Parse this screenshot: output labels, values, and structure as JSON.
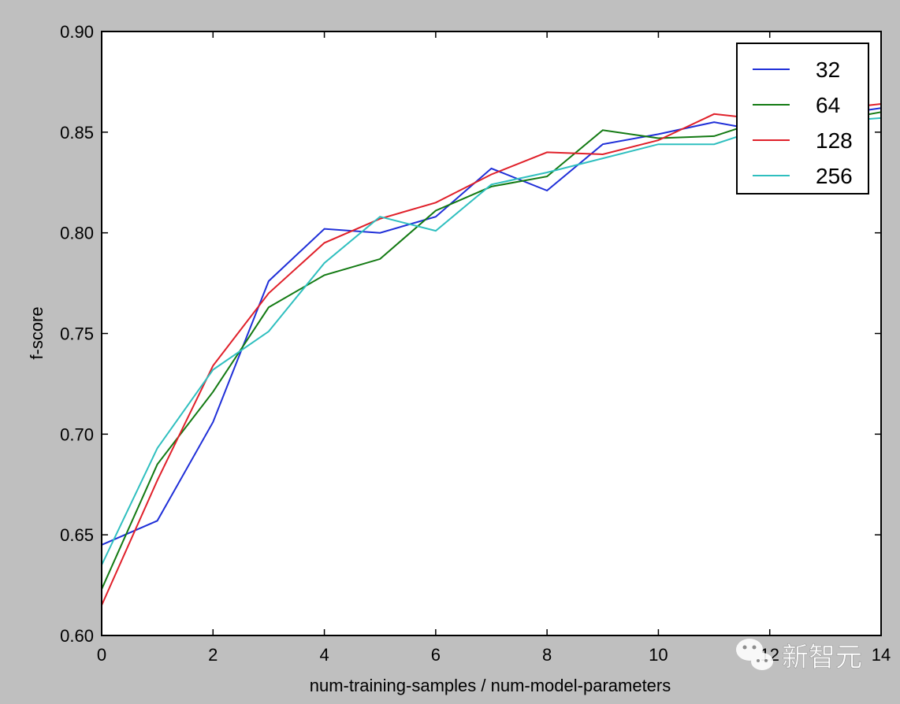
{
  "chart_data": {
    "type": "line",
    "title": "",
    "xlabel": "num-training-samples / num-model-parameters",
    "ylabel": "f-score",
    "xlim": [
      0,
      14
    ],
    "ylim": [
      0.6,
      0.9
    ],
    "x_ticks": [
      0,
      2,
      4,
      6,
      8,
      10,
      12,
      14
    ],
    "y_ticks": [
      0.6,
      0.65,
      0.7,
      0.75,
      0.8,
      0.85,
      0.9
    ],
    "grid": false,
    "legend_position": "top-right",
    "x": [
      0,
      1,
      2,
      3,
      4,
      5,
      6,
      7,
      8,
      9,
      10,
      11,
      12,
      13,
      14
    ],
    "series": [
      {
        "name": "32",
        "color": "#1f2fd8",
        "values": [
          0.645,
          0.657,
          0.706,
          0.776,
          0.802,
          0.8,
          0.808,
          0.832,
          0.821,
          0.844,
          0.849,
          0.855,
          0.85,
          0.858,
          0.862
        ]
      },
      {
        "name": "64",
        "color": "#137a13",
        "values": [
          0.623,
          0.685,
          0.721,
          0.763,
          0.779,
          0.787,
          0.811,
          0.823,
          0.828,
          0.851,
          0.847,
          0.848,
          0.857,
          0.855,
          0.86
        ]
      },
      {
        "name": "128",
        "color": "#e0202a",
        "values": [
          0.615,
          0.677,
          0.734,
          0.77,
          0.795,
          0.807,
          0.815,
          0.829,
          0.84,
          0.839,
          0.846,
          0.859,
          0.856,
          0.861,
          0.864
        ]
      },
      {
        "name": "256",
        "color": "#2fbfbf",
        "values": [
          0.635,
          0.693,
          0.732,
          0.751,
          0.785,
          0.808,
          0.801,
          0.824,
          0.83,
          0.837,
          0.844,
          0.844,
          0.853,
          0.855,
          0.857
        ]
      }
    ]
  },
  "watermark": {
    "text": "新智元",
    "icon": "wechat-icon"
  }
}
